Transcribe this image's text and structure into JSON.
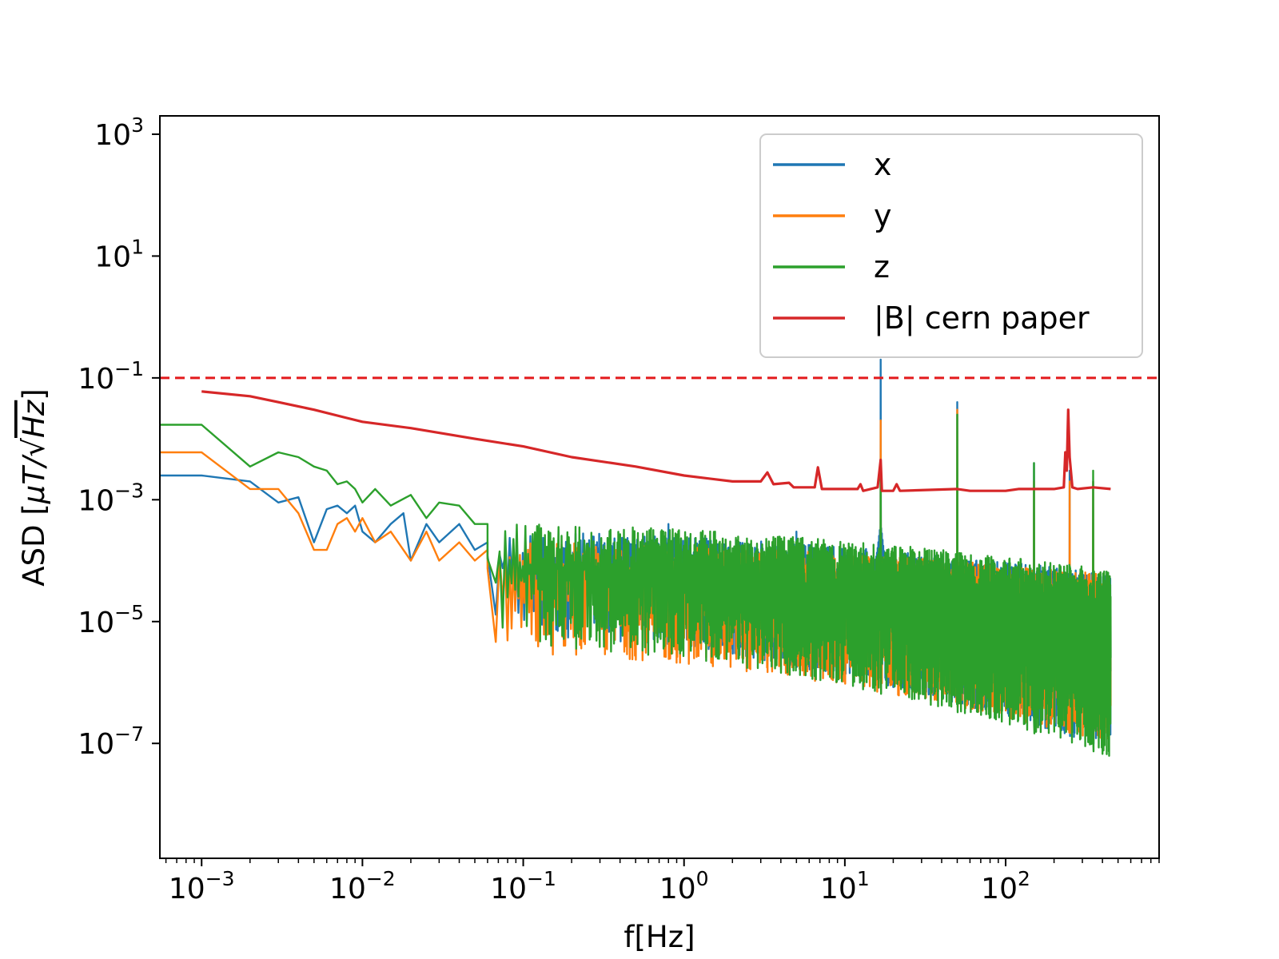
{
  "chart_data": {
    "type": "line",
    "title": "",
    "xlabel": "f[Hz]",
    "ylabel_parts": {
      "prefix": "ASD [",
      "mu": "μ",
      "unit": "T/",
      "sqrt": "√",
      "radicand": "Hz",
      "suffix": "]"
    },
    "xscale": "log",
    "yscale": "log",
    "xlim": [
      0.00055,
      900
    ],
    "ylim": [
      1.3e-09,
      2000
    ],
    "grid": false,
    "legend_position": "top-right",
    "x_ticks": [
      {
        "base": "10",
        "exp": "−3",
        "value": 0.001
      },
      {
        "base": "10",
        "exp": "−2",
        "value": 0.01
      },
      {
        "base": "10",
        "exp": "−1",
        "value": 0.1
      },
      {
        "base": "10",
        "exp": "0",
        "value": 1
      },
      {
        "base": "10",
        "exp": "1",
        "value": 10
      },
      {
        "base": "10",
        "exp": "2",
        "value": 100
      }
    ],
    "y_ticks": [
      {
        "base": "10",
        "exp": "3",
        "value": 1000
      },
      {
        "base": "10",
        "exp": "1",
        "value": 10
      },
      {
        "base": "10",
        "exp": "−1",
        "value": 0.1
      },
      {
        "base": "10",
        "exp": "−3",
        "value": 0.001
      },
      {
        "base": "10",
        "exp": "−5",
        "value": 1e-05
      },
      {
        "base": "10",
        "exp": "−7",
        "value": 1e-07
      }
    ],
    "reference_line": {
      "y": 0.1,
      "color": "#e31a1c",
      "style": "dashed"
    },
    "series": [
      {
        "name": "x",
        "color": "#1f77b4",
        "low_freq_points": [
          [
            0.00055,
            0.0025
          ],
          [
            0.001,
            0.0025
          ],
          [
            0.002,
            0.002
          ],
          [
            0.003,
            0.0009
          ],
          [
            0.004,
            0.0011
          ],
          [
            0.005,
            0.0002
          ],
          [
            0.006,
            0.0007
          ],
          [
            0.007,
            0.0008
          ],
          [
            0.008,
            0.0006
          ],
          [
            0.009,
            0.0008
          ],
          [
            0.01,
            0.0003
          ],
          [
            0.012,
            0.0002
          ],
          [
            0.015,
            0.0004
          ],
          [
            0.018,
            0.0006
          ],
          [
            0.02,
            0.0001
          ],
          [
            0.025,
            0.0004
          ],
          [
            0.03,
            0.0002
          ],
          [
            0.04,
            0.0004
          ],
          [
            0.05,
            0.00015
          ],
          [
            0.06,
            0.0002
          ]
        ],
        "noise_upper_start": 0.0003,
        "noise_upper_end": 6e-05,
        "noise_lower_start": 6e-06,
        "noise_lower_end": 8e-08,
        "peaks": [
          [
            16.7,
            0.2
          ],
          [
            50,
            0.04
          ],
          [
            150,
            0.004
          ],
          [
            250,
            0.003
          ],
          [
            350,
            0.002
          ],
          [
            0.8,
            0.0004
          ],
          [
            5,
            0.0003
          ],
          [
            0.15,
            0.0003
          ]
        ]
      },
      {
        "name": "y",
        "color": "#ff7f0e",
        "low_freq_points": [
          [
            0.00055,
            0.006
          ],
          [
            0.001,
            0.006
          ],
          [
            0.002,
            0.0015
          ],
          [
            0.003,
            0.0015
          ],
          [
            0.004,
            0.0006
          ],
          [
            0.005,
            0.00015
          ],
          [
            0.006,
            0.00015
          ],
          [
            0.007,
            0.0004
          ],
          [
            0.008,
            0.0005
          ],
          [
            0.009,
            0.0003
          ],
          [
            0.01,
            0.0005
          ],
          [
            0.012,
            0.0002
          ],
          [
            0.015,
            0.0003
          ],
          [
            0.02,
            0.0001
          ],
          [
            0.025,
            0.0003
          ],
          [
            0.03,
            0.0001
          ],
          [
            0.04,
            0.0002
          ],
          [
            0.05,
            0.0001
          ],
          [
            0.06,
            0.00015
          ]
        ],
        "noise_upper_start": 0.0002,
        "noise_upper_end": 6e-05,
        "noise_lower_start": 3e-06,
        "noise_lower_end": 1e-07,
        "peaks": [
          [
            16.7,
            0.02
          ],
          [
            50,
            0.03
          ],
          [
            150,
            0.002
          ],
          [
            250,
            0.002
          ],
          [
            350,
            0.002
          ]
        ]
      },
      {
        "name": "z",
        "color": "#2ca02c",
        "low_freq_points": [
          [
            0.00055,
            0.017
          ],
          [
            0.001,
            0.017
          ],
          [
            0.002,
            0.0035
          ],
          [
            0.003,
            0.006
          ],
          [
            0.004,
            0.005
          ],
          [
            0.005,
            0.0035
          ],
          [
            0.006,
            0.003
          ],
          [
            0.007,
            0.0018
          ],
          [
            0.008,
            0.002
          ],
          [
            0.009,
            0.0015
          ],
          [
            0.01,
            0.0009
          ],
          [
            0.012,
            0.0015
          ],
          [
            0.015,
            0.0008
          ],
          [
            0.02,
            0.0012
          ],
          [
            0.025,
            0.0005
          ],
          [
            0.03,
            0.0009
          ],
          [
            0.04,
            0.0008
          ],
          [
            0.05,
            0.0004
          ],
          [
            0.06,
            0.0004
          ]
        ],
        "noise_upper_start": 0.0004,
        "noise_upper_end": 7e-05,
        "noise_lower_start": 4e-06,
        "noise_lower_end": 6e-08,
        "peaks": [
          [
            16.7,
            0.003
          ],
          [
            50,
            0.025
          ],
          [
            150,
            0.004
          ],
          [
            350,
            0.003
          ]
        ]
      },
      {
        "name": "|B| cern paper",
        "color": "#d62728",
        "points": [
          [
            0.001,
            0.06
          ],
          [
            0.002,
            0.05
          ],
          [
            0.003,
            0.04
          ],
          [
            0.005,
            0.03
          ],
          [
            0.008,
            0.022
          ],
          [
            0.01,
            0.019
          ],
          [
            0.02,
            0.015
          ],
          [
            0.05,
            0.01
          ],
          [
            0.1,
            0.0075
          ],
          [
            0.2,
            0.005
          ],
          [
            0.5,
            0.0035
          ],
          [
            1,
            0.0025
          ],
          [
            2,
            0.002
          ],
          [
            3,
            0.002
          ],
          [
            3.3,
            0.0028
          ],
          [
            3.6,
            0.0018
          ],
          [
            4.5,
            0.0019
          ],
          [
            4.8,
            0.0016
          ],
          [
            6.5,
            0.0016
          ],
          [
            6.8,
            0.0034
          ],
          [
            7.2,
            0.0015
          ],
          [
            12,
            0.0015
          ],
          [
            12.5,
            0.0018
          ],
          [
            13,
            0.0014
          ],
          [
            16,
            0.0016
          ],
          [
            16.7,
            0.0045
          ],
          [
            17,
            0.0014
          ],
          [
            20,
            0.0014
          ],
          [
            21,
            0.0018
          ],
          [
            22,
            0.0014
          ],
          [
            50,
            0.0015
          ],
          [
            60,
            0.0014
          ],
          [
            100,
            0.0014
          ],
          [
            120,
            0.0015
          ],
          [
            200,
            0.0015
          ],
          [
            230,
            0.0016
          ],
          [
            235,
            0.006
          ],
          [
            240,
            0.003
          ],
          [
            245,
            0.03
          ],
          [
            250,
            0.005
          ],
          [
            260,
            0.0016
          ],
          [
            280,
            0.0015
          ],
          [
            350,
            0.0016
          ],
          [
            450,
            0.0015
          ]
        ]
      }
    ]
  }
}
